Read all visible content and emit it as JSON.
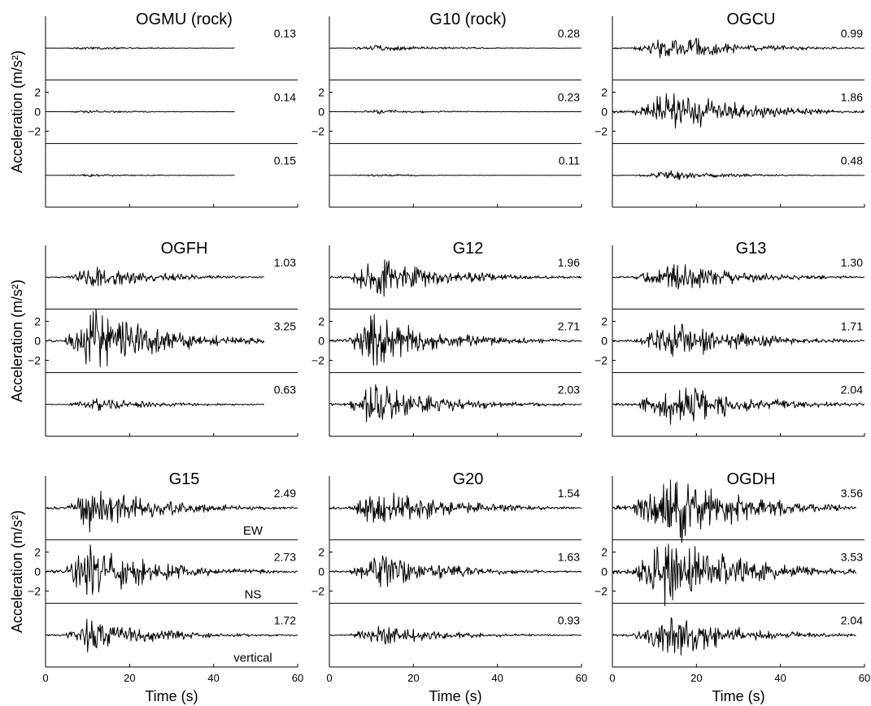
{
  "figure": {
    "ylabel": "Acceleration (m/s²)",
    "xlabel": "Time (s)",
    "component_labels": [
      "EW",
      "NS",
      "vertical"
    ]
  },
  "chart_data": [
    {
      "type": "line",
      "title": "OGMU (rock)",
      "duration": 45,
      "xlim": [
        0,
        60
      ],
      "xticks": [
        "0",
        "20",
        "40",
        "60"
      ],
      "yticks": [
        "2",
        "0",
        "−2"
      ],
      "components": [
        "EW",
        "NS",
        "vertical"
      ],
      "peak_values": [
        "0.13",
        "0.14",
        "0.15"
      ],
      "amplitudes": [
        0.13,
        0.14,
        0.15
      ]
    },
    {
      "type": "line",
      "title": "G10 (rock)",
      "duration": 60,
      "xlim": [
        0,
        60
      ],
      "xticks": [
        "0",
        "20",
        "40",
        "60"
      ],
      "yticks": [
        "2",
        "0",
        "−2"
      ],
      "components": [
        "EW",
        "NS",
        "vertical"
      ],
      "peak_values": [
        "0.28",
        "0.23",
        "0.11"
      ],
      "amplitudes": [
        0.28,
        0.23,
        0.11
      ]
    },
    {
      "type": "line",
      "title": "OGCU",
      "duration": 60,
      "xlim": [
        0,
        60
      ],
      "xticks": [
        "0",
        "20",
        "40",
        "60"
      ],
      "yticks": [
        "2",
        "0",
        "−2"
      ],
      "components": [
        "EW",
        "NS",
        "vertical"
      ],
      "peak_values": [
        "0.99",
        "1.86",
        "0.48"
      ],
      "amplitudes": [
        0.99,
        1.86,
        0.48
      ]
    },
    {
      "type": "line",
      "title": "OGFH",
      "duration": 52,
      "xlim": [
        0,
        60
      ],
      "xticks": [
        "0",
        "20",
        "40",
        "60"
      ],
      "yticks": [
        "2",
        "0",
        "−2"
      ],
      "components": [
        "EW",
        "NS",
        "vertical"
      ],
      "peak_values": [
        "1.03",
        "3.25",
        "0.63"
      ],
      "amplitudes": [
        1.03,
        3.25,
        0.63
      ]
    },
    {
      "type": "line",
      "title": "G12",
      "duration": 60,
      "xlim": [
        0,
        60
      ],
      "xticks": [
        "0",
        "20",
        "40",
        "60"
      ],
      "yticks": [
        "2",
        "0",
        "−2"
      ],
      "components": [
        "EW",
        "NS",
        "vertical"
      ],
      "peak_values": [
        "1.96",
        "2.71",
        "2.03"
      ],
      "amplitudes": [
        1.96,
        2.71,
        2.03
      ]
    },
    {
      "type": "line",
      "title": "G13",
      "duration": 60,
      "xlim": [
        0,
        60
      ],
      "xticks": [
        "0",
        "20",
        "40",
        "60"
      ],
      "yticks": [
        "2",
        "0",
        "−2"
      ],
      "components": [
        "EW",
        "NS",
        "vertical"
      ],
      "peak_values": [
        "1.30",
        "1.71",
        "2.04"
      ],
      "amplitudes": [
        1.3,
        1.71,
        2.04
      ]
    },
    {
      "type": "line",
      "title": "G15",
      "duration": 60,
      "xlim": [
        0,
        60
      ],
      "xticks": [
        "0",
        "20",
        "40",
        "60"
      ],
      "yticks": [
        "2",
        "0",
        "−2"
      ],
      "components": [
        "EW",
        "NS",
        "vertical"
      ],
      "peak_values": [
        "2.49",
        "2.73",
        "1.72"
      ],
      "amplitudes": [
        2.49,
        2.73,
        1.72
      ]
    },
    {
      "type": "line",
      "title": "G20",
      "duration": 60,
      "xlim": [
        0,
        60
      ],
      "xticks": [
        "0",
        "20",
        "40",
        "60"
      ],
      "yticks": [
        "2",
        "0",
        "−2"
      ],
      "components": [
        "EW",
        "NS",
        "vertical"
      ],
      "peak_values": [
        "1.54",
        "1.63",
        "0.93"
      ],
      "amplitudes": [
        1.54,
        1.63,
        0.93
      ]
    },
    {
      "type": "line",
      "title": "OGDH",
      "duration": 58,
      "xlim": [
        0,
        60
      ],
      "xticks": [
        "0",
        "20",
        "40",
        "60"
      ],
      "yticks": [
        "2",
        "0",
        "−2"
      ],
      "components": [
        "EW",
        "NS",
        "vertical"
      ],
      "peak_values": [
        "3.56",
        "3.53",
        "2.04"
      ],
      "amplitudes": [
        3.56,
        3.53,
        2.04
      ]
    }
  ]
}
